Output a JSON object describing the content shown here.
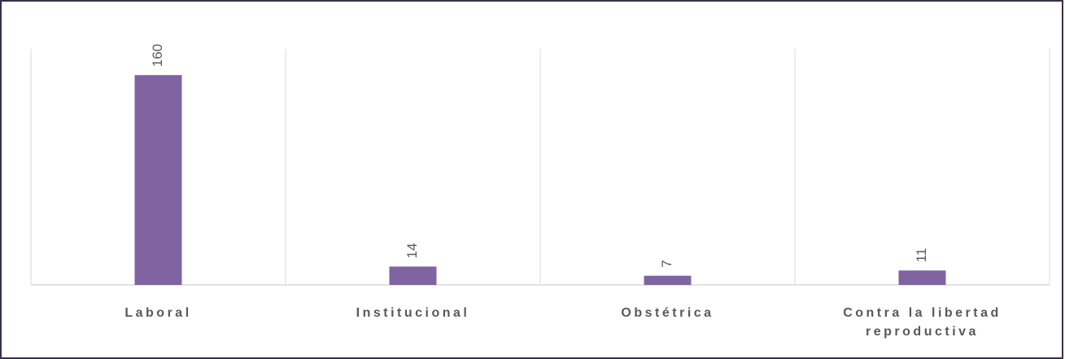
{
  "chart_data": {
    "type": "bar",
    "categories": [
      "Laboral",
      "Institucional",
      "Obstétrica",
      "Contra la libertad reproductiva"
    ],
    "values": [
      160,
      14,
      7,
      11
    ],
    "color": "#8064a2",
    "ylim": [
      0,
      180
    ]
  }
}
